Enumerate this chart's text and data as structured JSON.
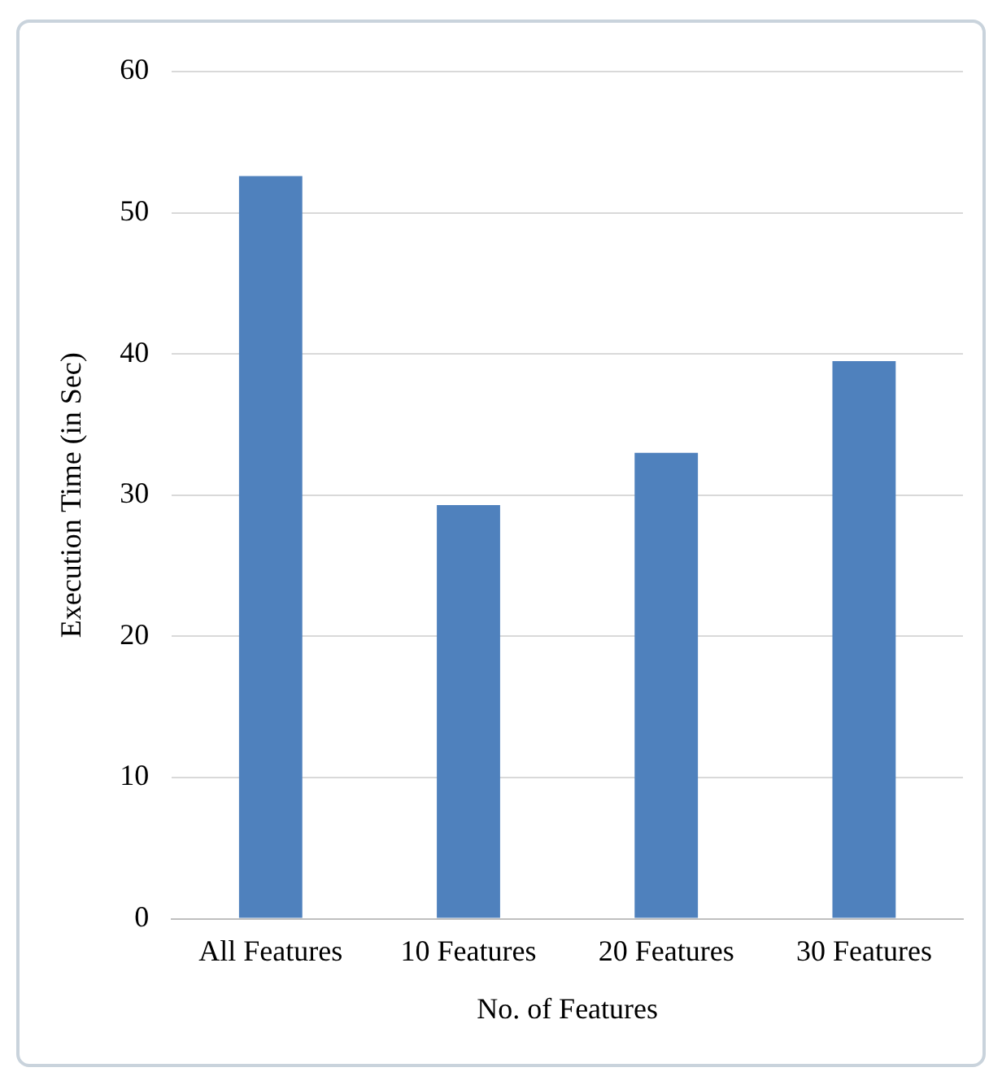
{
  "chart_data": {
    "type": "bar",
    "xlabel": "No. of Features",
    "ylabel": "Execution Time (in Sec)",
    "categories": [
      "All Features",
      "10 Features",
      "20 Features",
      "30 Features"
    ],
    "values": [
      52.6,
      29.3,
      33,
      39.5
    ],
    "color": "#4f81bd",
    "ylim": [
      0,
      60
    ],
    "yticks": [
      0,
      10,
      20,
      30,
      40,
      50,
      60
    ],
    "grid": "y"
  }
}
